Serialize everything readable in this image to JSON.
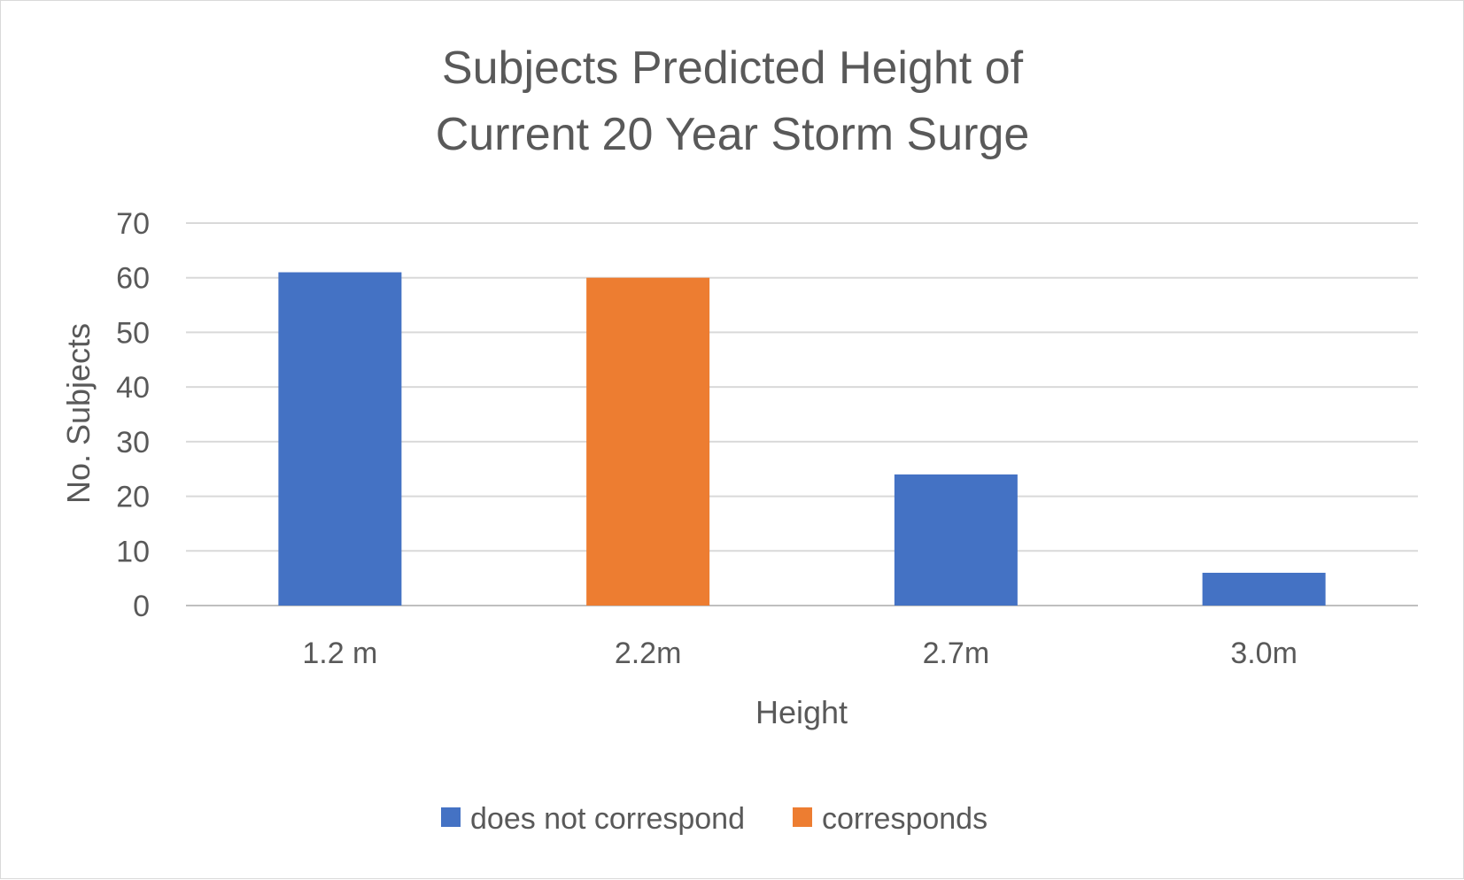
{
  "chart_data": {
    "type": "bar",
    "title_lines": [
      "Subjects Predicted Height of",
      "Current 20 Year Storm Surge"
    ],
    "xlabel": "Height",
    "ylabel": "No. Subjects",
    "categories": [
      "1.2 m",
      "2.2m",
      "2.7m",
      "3.0m"
    ],
    "series": [
      {
        "name": "does not correspond",
        "color": "#4472c4",
        "values": [
          61,
          null,
          24,
          6
        ]
      },
      {
        "name": "corresponds",
        "color": "#ed7d31",
        "values": [
          null,
          60,
          null,
          null
        ]
      }
    ],
    "ylim": [
      0,
      70
    ],
    "yticks": [
      "0",
      "10",
      "20",
      "30",
      "40",
      "50",
      "60",
      "70"
    ],
    "grid": true,
    "legend_position": "bottom"
  }
}
